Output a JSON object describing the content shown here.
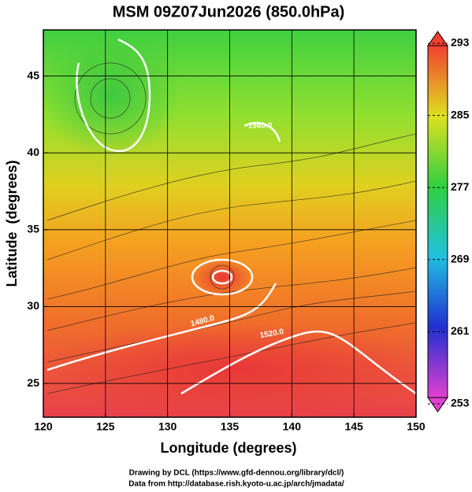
{
  "chart_data": {
    "type": "map",
    "title": "MSM 09Z07Jun2026 (850.0hPa)",
    "x_label": "Longitude (degrees)",
    "y_label": "Latitude  (degrees)",
    "xlim": [
      120,
      150
    ],
    "ylim": [
      22.8,
      48.0
    ],
    "xticks": [
      120,
      125,
      130,
      135,
      140,
      145,
      150
    ],
    "yticks": [
      25,
      30,
      35,
      40,
      45
    ],
    "grid": true,
    "colorbar_lim": [
      253,
      293
    ],
    "colorbar_ticks": [
      253,
      261,
      269,
      277,
      285,
      293
    ],
    "contour_labels": [
      {
        "value": 1480,
        "label": "1480.0"
      },
      {
        "value": 1520,
        "label": "1520.0"
      },
      {
        "value": 1560,
        "label": "1560.0"
      }
    ],
    "footer": [
      "Drawing by DCL (https://www.gfd-dennou.org/library/dcl/)",
      "Data from http://database.rish.kyoto-u.ac.jp/arch/jmadata/"
    ]
  }
}
